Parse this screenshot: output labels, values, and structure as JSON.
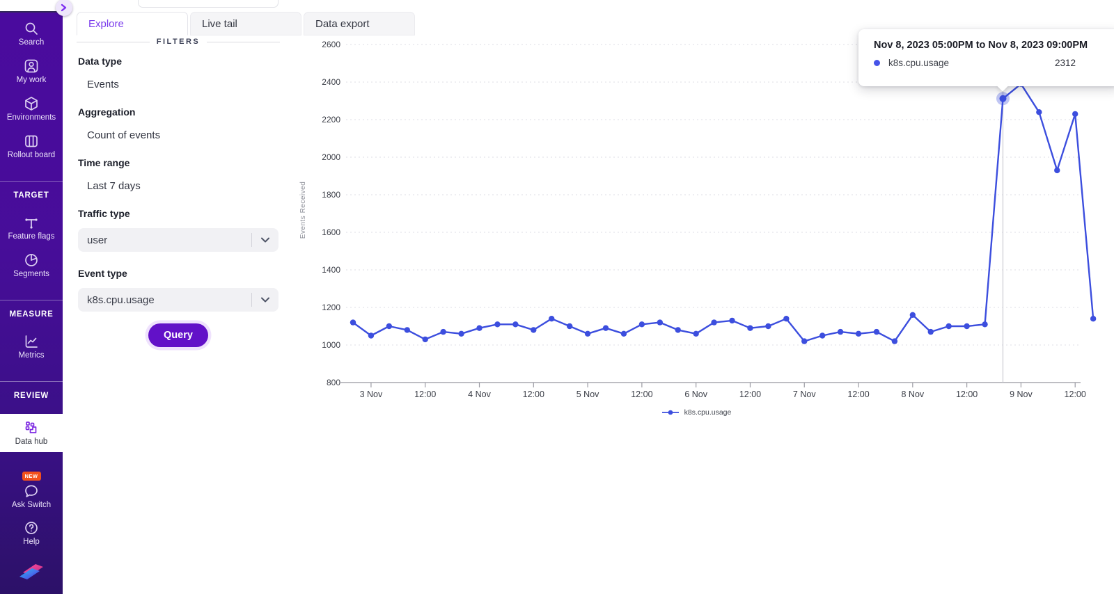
{
  "colors": {
    "accent_purple": "#7a3bec",
    "button_purple": "#6211c8",
    "line_blue": "#3c4ede",
    "tooltip_dot_blue": "#4553e8",
    "sidebar_top": "#4a0b9e",
    "sidebar_bottom": "#2c1168",
    "badge_orange": "#f4501c"
  },
  "sidebar": {
    "top": [
      {
        "label": "Search",
        "icon": "search-icon"
      },
      {
        "label": "My work",
        "icon": "user-card-icon"
      },
      {
        "label": "Environments",
        "icon": "cube-icon"
      },
      {
        "label": "Rollout board",
        "icon": "columns-icon"
      }
    ],
    "sections": [
      {
        "header": "TARGET",
        "items": [
          {
            "label": "Feature flags",
            "icon": "flag-branch-icon"
          },
          {
            "label": "Segments",
            "icon": "pie-icon"
          }
        ]
      },
      {
        "header": "MEASURE",
        "items": [
          {
            "label": "Metrics",
            "icon": "line-chart-icon"
          }
        ]
      },
      {
        "header": "REVIEW",
        "items": [
          {
            "label": "Data hub",
            "icon": "data-hub-icon",
            "active": true
          }
        ]
      }
    ],
    "bottom": [
      {
        "label": "Ask Switch",
        "icon": "chat-bubble-icon",
        "badge": "NEW"
      },
      {
        "label": "Help",
        "icon": "question-icon"
      }
    ]
  },
  "tabs": [
    {
      "label": "Explore",
      "active": true
    },
    {
      "label": "Live tail",
      "active": false
    },
    {
      "label": "Data export",
      "active": false
    }
  ],
  "filters": {
    "divider_label": "FILTERS",
    "fields": [
      {
        "label": "Data type",
        "value": "Events",
        "type": "text"
      },
      {
        "label": "Aggregation",
        "value": "Count of events",
        "type": "text"
      },
      {
        "label": "Time range",
        "value": "Last 7 days",
        "type": "text"
      },
      {
        "label": "Traffic type",
        "value": "user",
        "type": "select"
      },
      {
        "label": "Event type",
        "value": "k8s.cpu.usage",
        "type": "select"
      }
    ],
    "query_label": "Query"
  },
  "tooltip": {
    "title": "Nov 8, 2023 05:00PM to Nov 8, 2023 09:00PM",
    "series": "k8s.cpu.usage",
    "value": "2312"
  },
  "chart_data": {
    "type": "line",
    "title": "",
    "xlabel": "",
    "ylabel": "Events Received",
    "ylim": [
      800,
      2600
    ],
    "y_ticks": [
      800,
      1000,
      1200,
      1400,
      1600,
      1800,
      2000,
      2200,
      2400,
      2600
    ],
    "x_interval_hours": 4,
    "x_ticks": [
      {
        "index": 1,
        "label": "3 Nov"
      },
      {
        "index": 4,
        "label": "12:00"
      },
      {
        "index": 7,
        "label": "4 Nov"
      },
      {
        "index": 10,
        "label": "12:00"
      },
      {
        "index": 13,
        "label": "5 Nov"
      },
      {
        "index": 16,
        "label": "12:00"
      },
      {
        "index": 19,
        "label": "6 Nov"
      },
      {
        "index": 22,
        "label": "12:00"
      },
      {
        "index": 25,
        "label": "7 Nov"
      },
      {
        "index": 28,
        "label": "12:00"
      },
      {
        "index": 31,
        "label": "8 Nov"
      },
      {
        "index": 34,
        "label": "12:00"
      },
      {
        "index": 37,
        "label": "9 Nov"
      },
      {
        "index": 40,
        "label": "12:00"
      }
    ],
    "series": [
      {
        "name": "k8s.cpu.usage",
        "color": "#3c4ede",
        "values": [
          1120,
          1050,
          1100,
          1080,
          1030,
          1070,
          1060,
          1090,
          1110,
          1110,
          1080,
          1140,
          1100,
          1060,
          1090,
          1060,
          1110,
          1120,
          1080,
          1060,
          1120,
          1130,
          1090,
          1100,
          1140,
          1020,
          1050,
          1070,
          1060,
          1070,
          1020,
          1160,
          1070,
          1100,
          1100,
          1110,
          2312,
          2390,
          2240,
          1930,
          2230,
          1140
        ]
      }
    ],
    "selected_point": {
      "series": "k8s.cpu.usage",
      "index": 36,
      "value": 2312
    },
    "legend": [
      {
        "label": "k8s.cpu.usage",
        "color": "#3c4ede"
      }
    ],
    "grid": "horizontal-dashed",
    "legend_position": "bottom-center"
  }
}
